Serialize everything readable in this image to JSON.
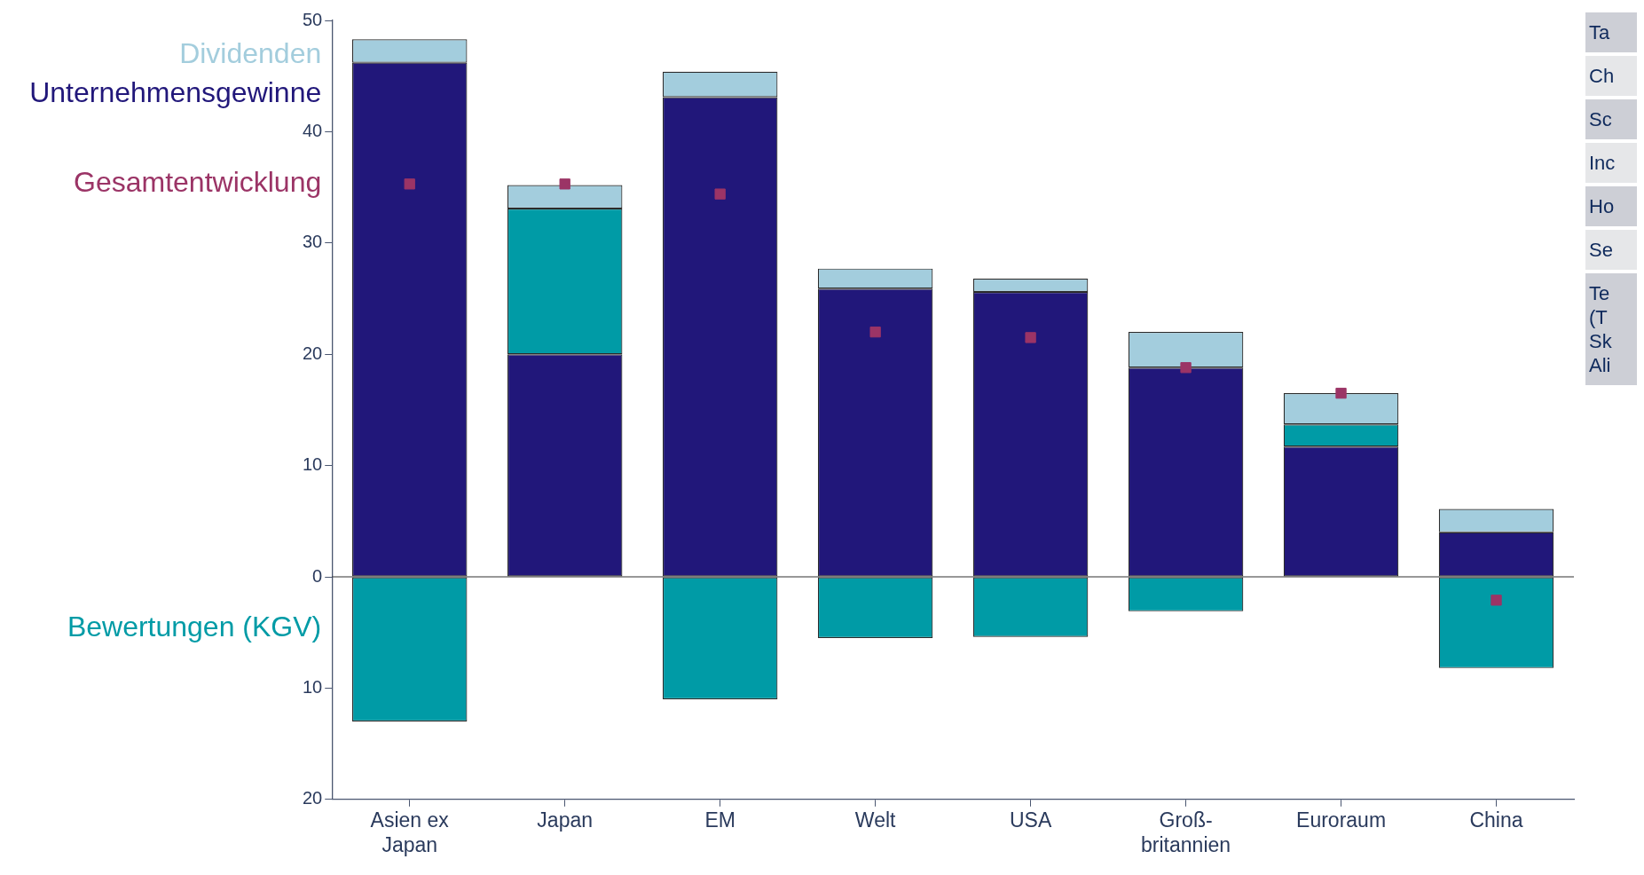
{
  "chart_data": {
    "type": "bar",
    "stacked": true,
    "categories": [
      "Asien ex\nJapan",
      "Japan",
      "EM",
      "Welt",
      "USA",
      "Groß-\nbritannien",
      "Euroraum",
      "China"
    ],
    "series": [
      {
        "name": "Unternehmensgewinne",
        "color": "#21177a",
        "values": [
          46.2,
          20.0,
          43.1,
          25.9,
          25.6,
          18.8,
          11.7,
          4.0
        ]
      },
      {
        "name": "Bewertungen (KGV)",
        "color": "#009ba6",
        "values": [
          -13.0,
          13.1,
          -11.0,
          -5.5,
          -5.4,
          -3.1,
          2.0,
          -8.2
        ]
      },
      {
        "name": "Dividenden",
        "color": "#a3cddd",
        "values": [
          2.1,
          2.1,
          2.3,
          1.8,
          1.2,
          3.2,
          2.8,
          2.1
        ]
      },
      {
        "name": "Gesamtentwicklung",
        "type": "scatter",
        "color": "#9b3466",
        "marker": "square",
        "x": [
          "Asien ex\nJapan",
          "Japan",
          "EM",
          "Welt",
          "USA",
          "Groß-\nbritannien",
          "Euroraum",
          "China"
        ],
        "values": [
          35.3,
          35.3,
          34.4,
          22.0,
          21.5,
          18.8,
          16.5,
          -2.1
        ]
      }
    ],
    "ylim": [
      -20,
      50
    ],
    "yticks": [
      {
        "value": -20,
        "label": "20"
      },
      {
        "value": -10,
        "label": "10"
      },
      0,
      10,
      20,
      30,
      40,
      50
    ],
    "ref_lines": [
      {
        "axis": "y",
        "value": 0,
        "color": "#333333"
      }
    ],
    "grid": false,
    "legend": "left",
    "annotations": [
      "Ta",
      "Ch",
      "Sc",
      "Inc",
      "Ho",
      "Se",
      "Te\n(T\nSk\nAli"
    ]
  }
}
